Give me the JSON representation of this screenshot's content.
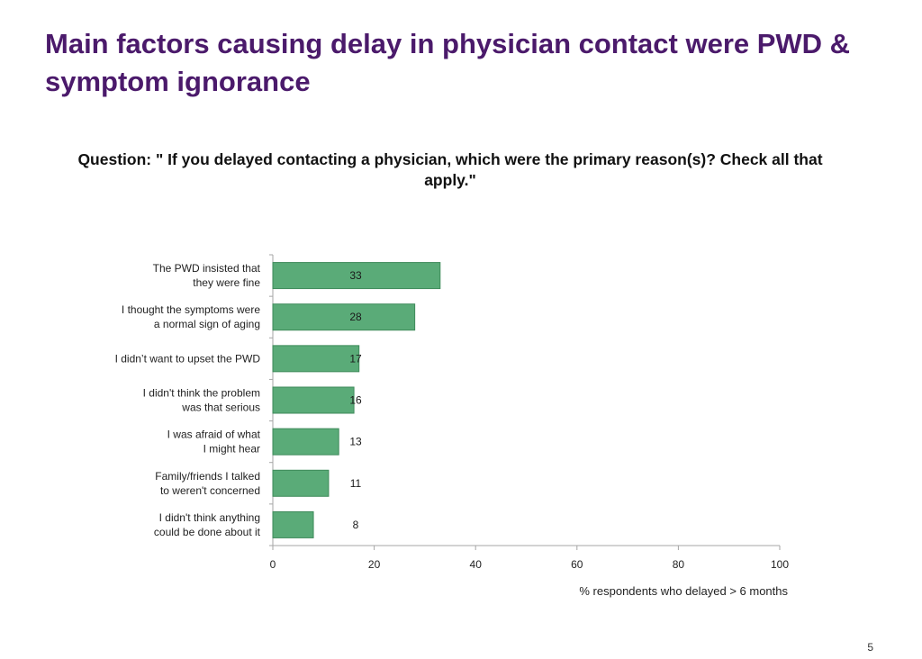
{
  "slide": {
    "title": "Main factors causing delay in physician contact were PWD & symptom ignorance",
    "question": "Question: \" If you delayed contacting a physician, which were the primary reason(s)? Check all that apply.\"",
    "page_number": "5"
  },
  "colors": {
    "title": "#4b1a6b",
    "bar": "#5aab78",
    "bar_stroke": "#3e8a5a",
    "axis": "#a6a6a6"
  },
  "chart_data": {
    "type": "bar",
    "orientation": "horizontal",
    "categories": [
      [
        "The PWD insisted that",
        "they were fine"
      ],
      [
        "I thought the symptoms were",
        "a normal sign of aging"
      ],
      [
        "I didn’t want to upset the PWD"
      ],
      [
        "I didn't think the problem",
        "was that serious"
      ],
      [
        "I was afraid of what",
        "I might hear"
      ],
      [
        "Family/friends I talked",
        "to weren't concerned"
      ],
      [
        "I didn't think anything",
        "could be done about it"
      ]
    ],
    "values": [
      33,
      28,
      17,
      16,
      13,
      11,
      8
    ],
    "data_labels": [
      "33",
      "28",
      "17",
      "16",
      "13",
      "11",
      "8"
    ],
    "xlabel": "% respondents who delayed > 6 months",
    "xlim": [
      0,
      100
    ],
    "xticks": [
      0,
      20,
      40,
      60,
      80,
      100
    ],
    "grid": false,
    "legend": "none"
  }
}
